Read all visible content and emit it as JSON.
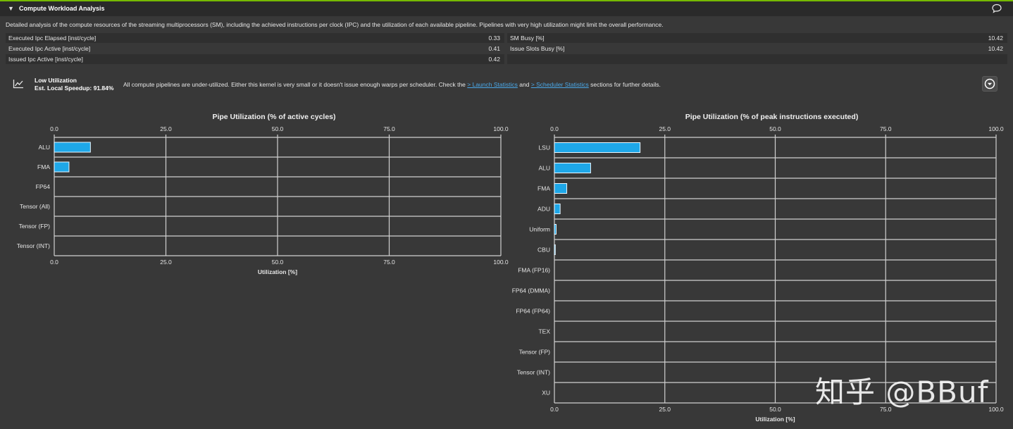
{
  "section": {
    "title": "Compute Workload Analysis",
    "description": "Detailed analysis of the compute resources of the streaming multiprocessors (SM), including the achieved instructions per clock (IPC) and the utilization of each available pipeline. Pipelines with very high utilization might limit the overall performance."
  },
  "metrics": {
    "left": [
      {
        "label": "Executed Ipc Elapsed [inst/cycle]",
        "value": "0.33"
      },
      {
        "label": "Executed Ipc Active [inst/cycle]",
        "value": "0.41"
      },
      {
        "label": "Issued Ipc Active [inst/cycle]",
        "value": "0.42"
      }
    ],
    "right": [
      {
        "label": "SM Busy [%]",
        "value": "10.42"
      },
      {
        "label": "Issue Slots Busy [%]",
        "value": "10.42"
      }
    ]
  },
  "recommendation": {
    "title": "Low Utilization",
    "subtitle": "Est. Local Speedup: 91.84%",
    "text_before": "All compute pipelines are under-utilized. Either this kernel is very small or it doesn't issue enough warps per scheduler. Check the",
    "link1": "> Launch Statistics",
    "text_mid": "and",
    "link2": "> Scheduler Statistics",
    "text_after": "sections for further details."
  },
  "colors": {
    "accent": "#76b900",
    "bar_fill": "#1ea7e8",
    "bar_stroke": "#e8f6ff",
    "grid": "#d0d0d0",
    "link": "#4aa8e8"
  },
  "watermark": "知乎 @BBuf",
  "chart_data": [
    {
      "type": "bar",
      "orientation": "horizontal",
      "title": "Pipe Utilization (% of active cycles)",
      "xlabel": "Utilization [%]",
      "xlim": [
        0,
        100
      ],
      "ticks": [
        "0.0",
        "25.0",
        "50.0",
        "75.0",
        "100.0"
      ],
      "tick_values": [
        0,
        25,
        50,
        75,
        100
      ],
      "categories": [
        "ALU",
        "FMA",
        "FP64",
        "Tensor (All)",
        "Tensor (FP)",
        "Tensor (INT)"
      ],
      "values": [
        8.1,
        3.3,
        0,
        0,
        0,
        0
      ]
    },
    {
      "type": "bar",
      "orientation": "horizontal",
      "title": "Pipe Utilization (% of peak instructions executed)",
      "xlabel": "Utilization [%]",
      "xlim": [
        0,
        100
      ],
      "ticks": [
        "0.0",
        "25.0",
        "50.0",
        "75.0",
        "100.0"
      ],
      "tick_values": [
        0,
        25,
        50,
        75,
        100
      ],
      "categories": [
        "LSU",
        "ALU",
        "FMA",
        "ADU",
        "Uniform",
        "CBU",
        "FMA (FP16)",
        "FP64 (DMMA)",
        "FP64 (FP64)",
        "TEX",
        "Tensor (FP)",
        "Tensor (INT)",
        "XU"
      ],
      "values": [
        19.4,
        8.2,
        2.8,
        1.3,
        0.4,
        0.2,
        0,
        0,
        0,
        0,
        0,
        0,
        0
      ]
    }
  ]
}
